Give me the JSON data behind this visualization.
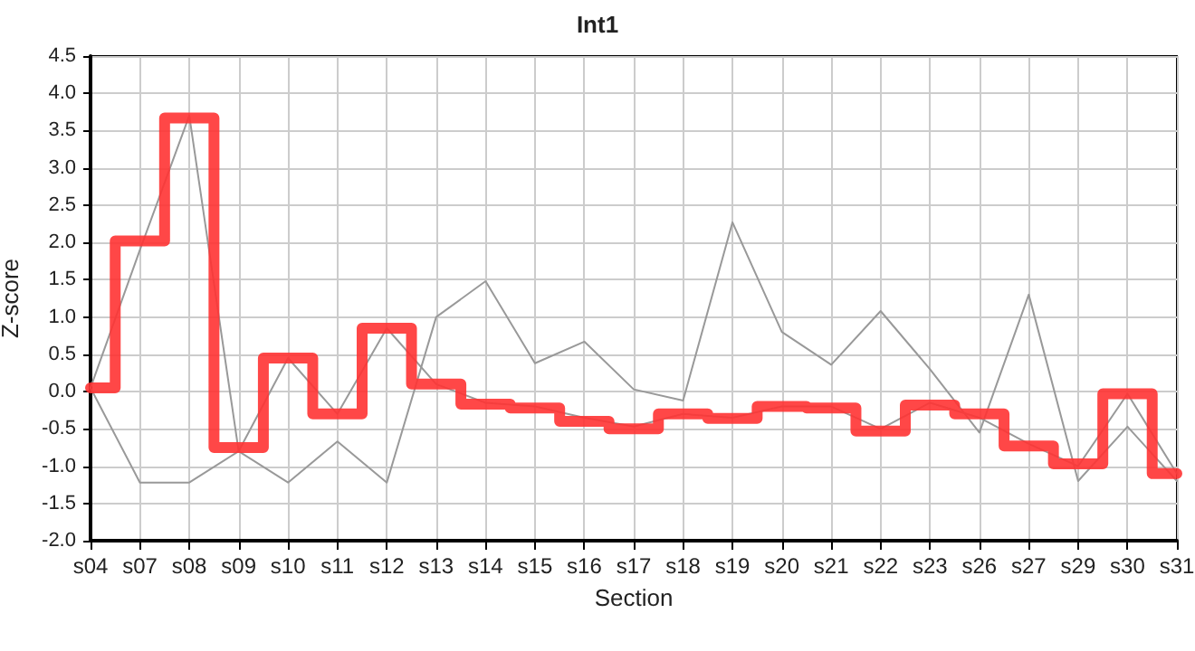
{
  "chart_data": {
    "type": "line",
    "title": "Int1",
    "xlabel": "Section",
    "ylabel": "Z-score",
    "categories": [
      "s04",
      "s07",
      "s08",
      "s09",
      "s10",
      "s11",
      "s12",
      "s13",
      "s14",
      "s15",
      "s16",
      "s17",
      "s18",
      "s19",
      "s20",
      "s21",
      "s22",
      "s23",
      "s26",
      "s27",
      "s29",
      "s30",
      "s31"
    ],
    "series": [
      {
        "color": "#999999",
        "values": [
          0.05,
          1.9,
          3.7,
          -0.8,
          0.45,
          -0.3,
          0.85,
          0.1,
          -0.15,
          -0.2,
          -0.35,
          -0.47,
          -0.3,
          -0.35,
          -0.2,
          -0.2,
          -0.5,
          -0.15,
          -0.35,
          -0.7,
          -1.0,
          -0.03,
          -1.1
        ]
      },
      {
        "color": "#999999",
        "values": [
          0.05,
          -1.22,
          -1.22,
          -0.8,
          -1.22,
          -0.67,
          -1.22,
          1.0,
          1.48,
          0.38,
          0.67,
          0.03,
          -0.12,
          2.27,
          0.8,
          0.36,
          1.08,
          0.3,
          -0.55,
          1.3,
          -1.2,
          -0.47,
          -1.2
        ]
      },
      {
        "type": "step",
        "color": "#ff3333",
        "values": [
          0.05,
          2.02,
          3.67,
          -0.75,
          0.45,
          -0.3,
          0.85,
          0.1,
          -0.17,
          -0.22,
          -0.4,
          -0.5,
          -0.3,
          -0.36,
          -0.2,
          -0.22,
          -0.53,
          -0.18,
          -0.3,
          -0.73,
          -0.97,
          -0.03,
          -1.1
        ]
      }
    ],
    "ylim": [
      -2.0,
      4.5
    ],
    "yticks": [
      {
        "value": -2.0,
        "label": "-2.0"
      },
      {
        "value": -1.5,
        "label": "-1.5"
      },
      {
        "value": -1.0,
        "label": "-1.0"
      },
      {
        "value": -0.5,
        "label": "-0.5"
      },
      {
        "value": 0,
        "label": "0.0"
      },
      {
        "value": 0.5,
        "label": "0.5"
      },
      {
        "value": 1.0,
        "label": "1.0"
      },
      {
        "value": 1.5,
        "label": "1.5"
      },
      {
        "value": 2.0,
        "label": "2.0"
      },
      {
        "value": 2.5,
        "label": "2.5"
      },
      {
        "value": 3.0,
        "label": "3.0"
      },
      {
        "value": 3.5,
        "label": "3.5"
      },
      {
        "value": 4.0,
        "label": "4.0"
      },
      {
        "value": 4.5,
        "label": "4.5"
      }
    ],
    "grid": true,
    "marker": "none"
  }
}
